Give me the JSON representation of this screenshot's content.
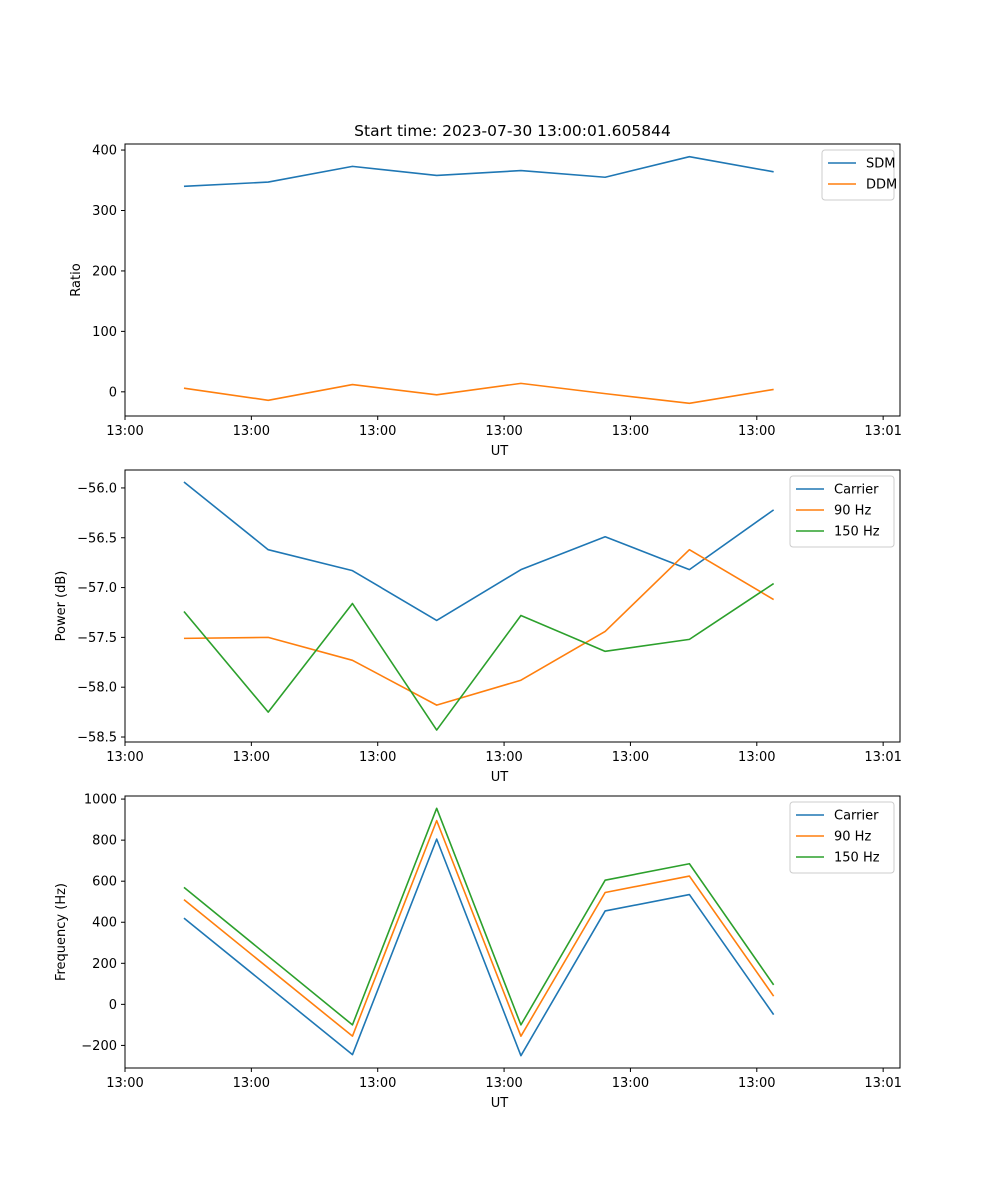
{
  "colors": {
    "blue": "#1f77b4",
    "orange": "#ff7f0e",
    "green": "#2ca02c"
  },
  "chart_data": [
    {
      "type": "line",
      "title": "Start time: 2023-07-30 13:00:01.605844",
      "xlabel": "UT",
      "ylabel": "Ratio",
      "xlim": [
        0,
        9.2
      ],
      "ylim": [
        -40,
        410
      ],
      "x": [
        0.7,
        1.7,
        2.7,
        3.7,
        4.7,
        5.7,
        6.7,
        7.7
      ],
      "xticks": [
        0,
        1.5,
        3,
        4.5,
        6,
        7.5,
        9
      ],
      "xtick_labels": [
        "13:00",
        "13:00",
        "13:00",
        "13:00",
        "13:00",
        "13:00",
        "13:01"
      ],
      "yticks": [
        0,
        100,
        200,
        300,
        400
      ],
      "ytick_labels": [
        "0",
        "100",
        "200",
        "300",
        "400"
      ],
      "legend_position": "top-right",
      "series": [
        {
          "name": "SDM",
          "color": "#1f77b4",
          "values": [
            340,
            347,
            373,
            358,
            366,
            355,
            389,
            364
          ]
        },
        {
          "name": "DDM",
          "color": "#ff7f0e",
          "values": [
            6,
            -14,
            12,
            -5,
            14,
            -3,
            -19,
            4
          ]
        }
      ]
    },
    {
      "type": "line",
      "title": "",
      "xlabel": "UT",
      "ylabel": "Power (dB)",
      "xlim": [
        0,
        9.2
      ],
      "ylim": [
        -58.55,
        -55.82
      ],
      "x": [
        0.7,
        1.7,
        2.7,
        3.7,
        4.7,
        5.7,
        6.7,
        7.7
      ],
      "xticks": [
        0,
        1.5,
        3,
        4.5,
        6,
        7.5,
        9
      ],
      "xtick_labels": [
        "13:00",
        "13:00",
        "13:00",
        "13:00",
        "13:00",
        "13:00",
        "13:01"
      ],
      "yticks": [
        -56.0,
        -56.5,
        -57.0,
        -57.5,
        -58.0,
        -58.5
      ],
      "ytick_labels": [
        "−56.0",
        "−56.5",
        "−57.0",
        "−57.5",
        "−58.0",
        "−58.5"
      ],
      "legend_position": "top-right",
      "series": [
        {
          "name": "Carrier",
          "color": "#1f77b4",
          "values": [
            -55.94,
            -56.62,
            -56.83,
            -57.33,
            -56.82,
            -56.49,
            -56.82,
            -56.22
          ]
        },
        {
          "name": "90 Hz",
          "color": "#ff7f0e",
          "values": [
            -57.51,
            -57.5,
            -57.73,
            -58.18,
            -57.93,
            -57.44,
            -56.62,
            -57.12
          ]
        },
        {
          "name": "150 Hz",
          "color": "#2ca02c",
          "values": [
            -57.24,
            -58.25,
            -57.16,
            -58.43,
            -57.28,
            -57.64,
            -57.52,
            -56.96
          ]
        }
      ]
    },
    {
      "type": "line",
      "title": "",
      "xlabel": "UT",
      "ylabel": "Frequency (Hz)",
      "xlim": [
        0,
        9.2
      ],
      "ylim": [
        -310,
        1015
      ],
      "x": [
        0.7,
        2.7,
        3.7,
        4.7,
        5.7,
        6.7,
        7.7
      ],
      "xticks": [
        0,
        1.5,
        3,
        4.5,
        6,
        7.5,
        9
      ],
      "xtick_labels": [
        "13:00",
        "13:00",
        "13:00",
        "13:00",
        "13:00",
        "13:00",
        "13:01"
      ],
      "yticks": [
        -200,
        0,
        200,
        400,
        600,
        800,
        1000
      ],
      "ytick_labels": [
        "−200",
        "0",
        "200",
        "400",
        "600",
        "800",
        "1000"
      ],
      "legend_position": "top-right",
      "series": [
        {
          "name": "Carrier",
          "color": "#1f77b4",
          "values": [
            420,
            -245,
            805,
            -250,
            455,
            535,
            -50
          ]
        },
        {
          "name": "90 Hz",
          "color": "#ff7f0e",
          "values": [
            510,
            -155,
            895,
            -155,
            545,
            625,
            40
          ]
        },
        {
          "name": "150 Hz",
          "color": "#2ca02c",
          "values": [
            570,
            -100,
            955,
            -100,
            605,
            685,
            95
          ]
        }
      ]
    }
  ]
}
